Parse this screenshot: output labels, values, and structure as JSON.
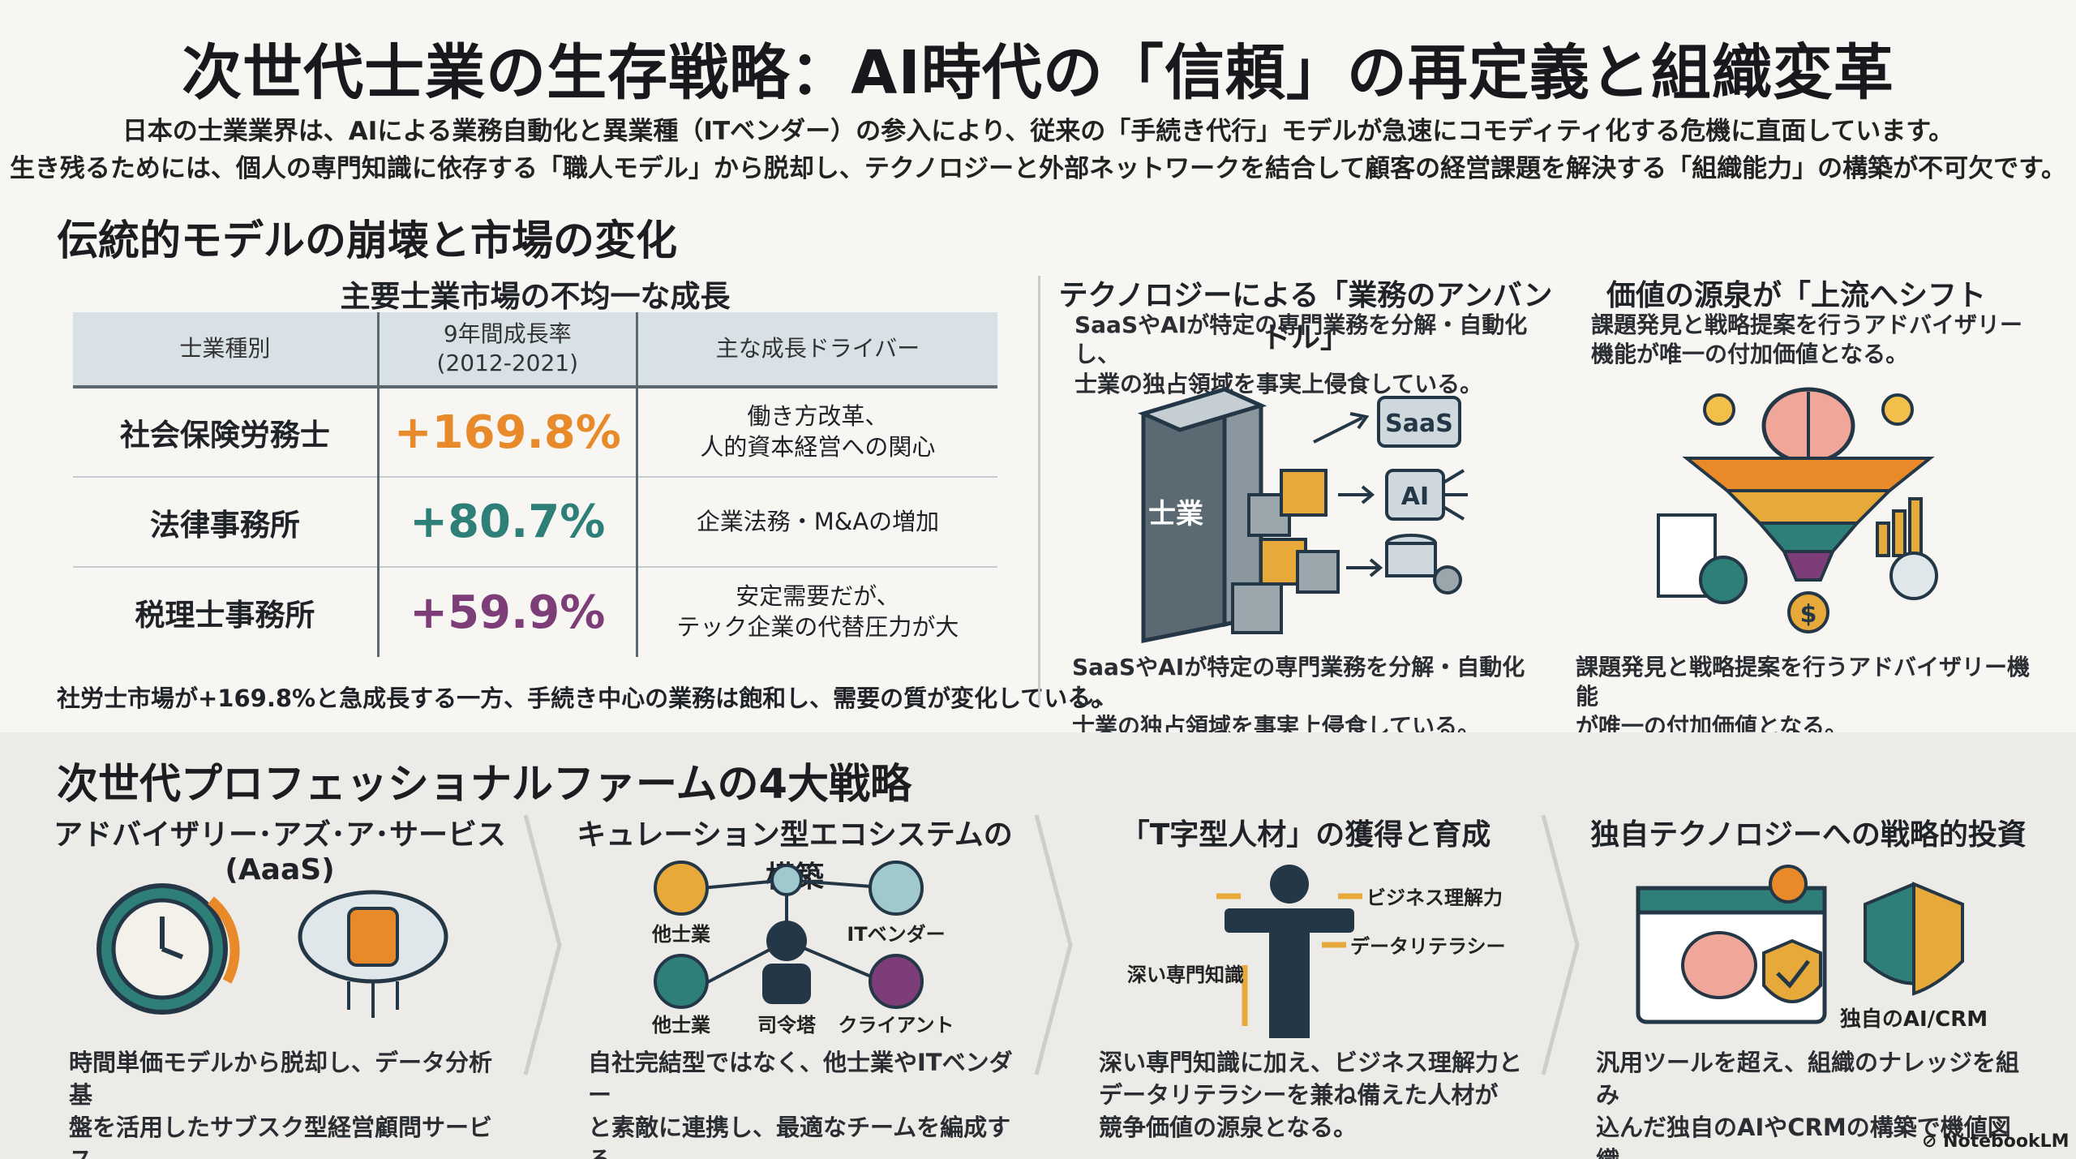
{
  "title": "次世代士業の生存戦略：AI時代の「信頼」の再定義と組織変革",
  "intro": [
    "日本の士業業界は、AIによる業務自動化と異業種（ITベンダー）の参入により、従来の「手続き代行」モデルが急速にコモディティ化する危機に直面しています。",
    "生き残るためには、個人の専門知識に依存する「職人モデル」から脱却し、テクノロジーと外部ネットワークを結合して顧客の経営課題を解決する「組織能力」の構築が不可欠です。"
  ],
  "section1": {
    "heading": "伝統的モデルの崩壊と市場の変化",
    "table": {
      "title": "主要士業市場の不均一な成長",
      "headers": [
        "士業種別",
        "9年間成長率\n(2012-2021)",
        "主な成長ドライバー"
      ],
      "rows": [
        {
          "type": "社会保険労務士",
          "rate": "+169.8%",
          "driver": "働き方改革、\n人的資本経営への関心",
          "color": "#e88a2a"
        },
        {
          "type": "法律事務所",
          "rate": "+80.7%",
          "driver": "企業法務・M&Aの増加",
          "color": "#2f7f79"
        },
        {
          "type": "税理士事務所",
          "rate": "+59.9%",
          "driver": "安定需要だが、\nテック企業の代替圧力が大",
          "color": "#7d3d78"
        }
      ],
      "note": "社労士市場が+169.8%と急成長する一方、手続き中心の業務は飽和し、需要の質が変化している。"
    },
    "unbundle": {
      "title": "テクノロジーによる「業務のアンバンドル」",
      "sub": "SaaSやAIが特定の専門業務を分解・自動化し、\n士業の独占領域を事実上侵食している。",
      "building_label": "士業",
      "saas_label": "SaaS",
      "ai_label": "AI",
      "desc": "SaaSやAIが特定の専門業務を分解・自動化し、\n士業の独占領域を事実上侵食している。"
    },
    "shift": {
      "title": "価値の源泉が「上流へシフト",
      "sub": "課題発見と戦略提案を行うアドバイザリー\n機能が唯一の付加価値となる。",
      "coin_label": "$",
      "desc": "課題発見と戦略提案を行うアドバイザリー機能\nが唯一の付加価値となる。"
    }
  },
  "section2": {
    "heading": "次世代プロフェッショナルファームの4大戦略",
    "strategies": [
      {
        "title": "アドバイザリー･アズ･ア･サービス(AaaS)",
        "desc": "時間単価モデルから脱却し、データ分析基\n盤を活用したサブスク型経営顧問サービス\nへ転換する。"
      },
      {
        "title": "キュレーション型エコシステムの構築",
        "desc": "自社完結型ではなく、他士業やITベンダー\nと素敵に連携し、最適なチームを編成する\n「司令塔」を目指す。"
      },
      {
        "title": "「T字型人材」の獲得と育成",
        "desc": "深い専門知識に加え、ビジネス理解力と\nデータリテラシーを兼ね備えた人材が\n競争価値の源泉となる。"
      },
      {
        "title": "独自テクノロジーへの戦略的投資",
        "desc": "汎用ツールを超え、組織のナレッジを組み\n込んだ独自のAIやCRMの構築で機値図織\nな強みを作る。"
      }
    ],
    "ecosystem": {
      "other1": "他士業",
      "it": "ITベンダー",
      "other2": "他士業",
      "center": "司令塔",
      "client": "クライアント"
    },
    "tshape": {
      "biz": "ビジネス理解力",
      "data": "データリテラシー",
      "deep": "深い専門知識"
    },
    "tech": {
      "label": "独自のAI/CRM"
    }
  },
  "watermark": "NotebookLM",
  "colors": {
    "orange": "#e88a2a",
    "teal": "#2f7f79",
    "purple": "#7d3d78",
    "navy": "#243746",
    "gold": "#e6a93a"
  }
}
